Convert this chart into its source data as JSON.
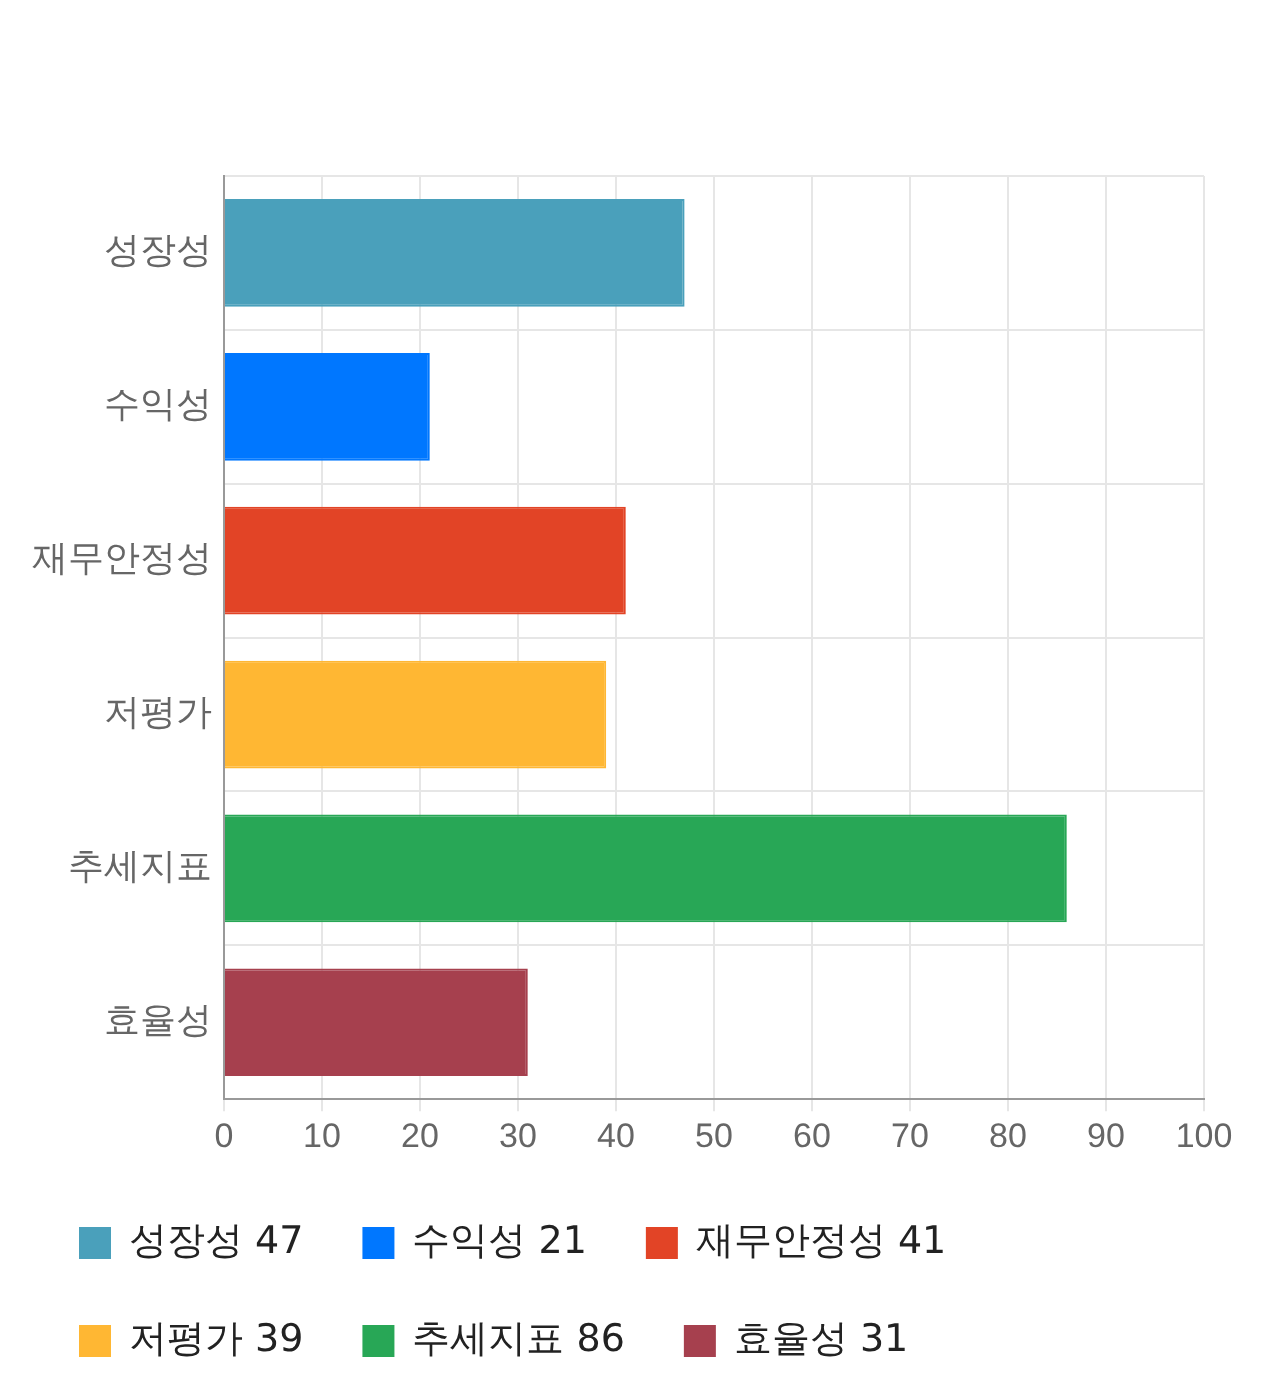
{
  "chart_data": {
    "type": "bar",
    "orientation": "horizontal",
    "categories": [
      "성장성",
      "수익성",
      "재무안정성",
      "저평가",
      "추세지표",
      "효율성"
    ],
    "series": [
      {
        "name": "성장성 47",
        "color": "#4aa0bb",
        "values": [
          47,
          null,
          null,
          null,
          null,
          null
        ]
      },
      {
        "name": "수익성 21",
        "color": "#0077ff",
        "values": [
          null,
          21,
          null,
          null,
          null,
          null
        ]
      },
      {
        "name": "재무안정성 41",
        "color": "#e24426",
        "values": [
          null,
          null,
          41,
          null,
          null,
          null
        ]
      },
      {
        "name": "저평가 39",
        "color": "#ffb733",
        "values": [
          null,
          null,
          null,
          39,
          null,
          null
        ]
      },
      {
        "name": "추세지표 86",
        "color": "#28a756",
        "values": [
          null,
          null,
          null,
          null,
          86,
          null
        ]
      },
      {
        "name": "효율성 31",
        "color": "#a6404e",
        "values": [
          null,
          null,
          null,
          null,
          null,
          31
        ]
      }
    ],
    "xlim": [
      0,
      100
    ],
    "xticks": [
      0,
      10,
      20,
      30,
      40,
      50,
      60,
      70,
      80,
      90,
      100
    ],
    "grid": true,
    "legend": "bottom"
  }
}
